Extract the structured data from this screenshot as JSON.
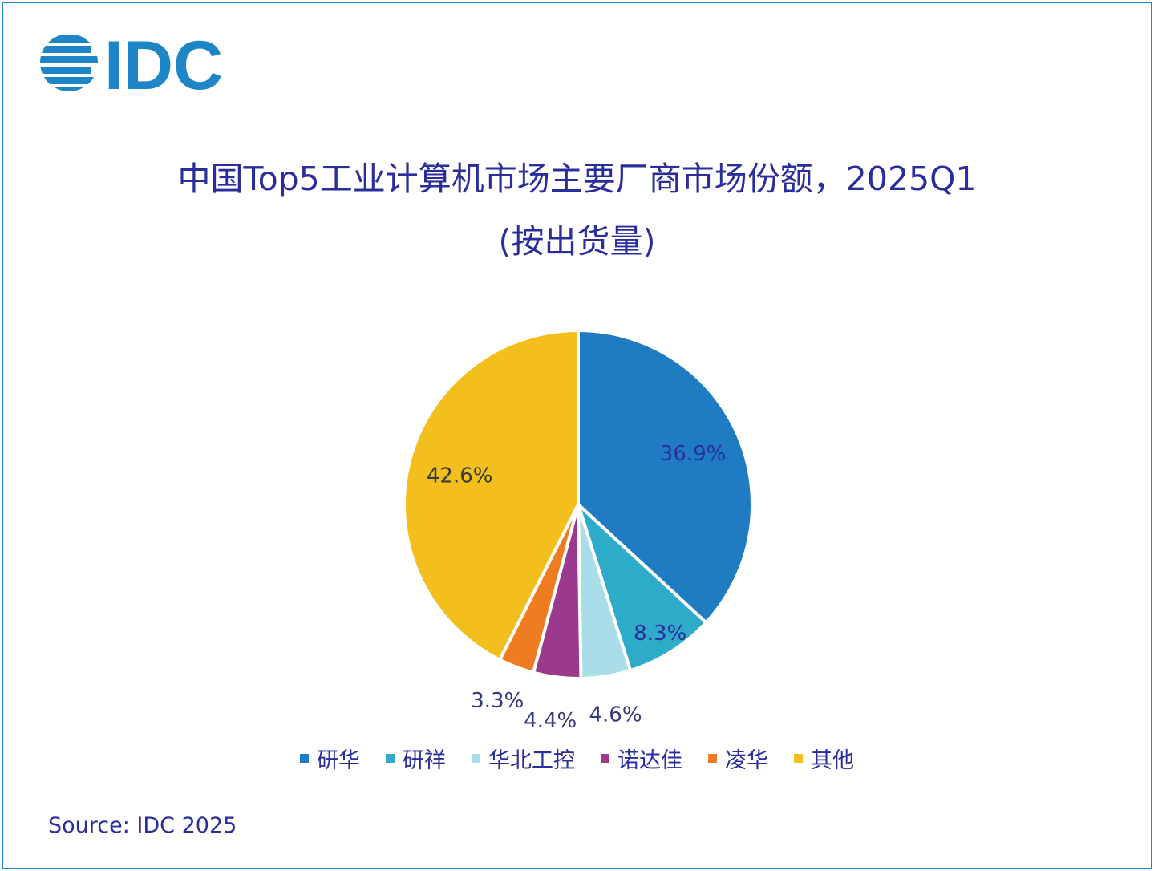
{
  "logo": {
    "text": "IDC",
    "color": "#1e86c7"
  },
  "title": {
    "line1": "中国Top5工业计算机市场主要厂商市场份额，2025Q1",
    "line2": "(按出货量)"
  },
  "source": "Source: IDC 2025",
  "chart_data": {
    "type": "pie",
    "start_angle_deg": 0,
    "direction": "clockwise",
    "slices": [
      {
        "name": "研华",
        "value": 36.9,
        "label": "36.9%",
        "color": "#1f7cc2",
        "label_color": "#2a2e9c"
      },
      {
        "name": "研祥",
        "value": 8.3,
        "label": "8.3%",
        "color": "#2eabc9",
        "label_color": "#2a2e9c"
      },
      {
        "name": "华北工控",
        "value": 4.6,
        "label": "4.6%",
        "color": "#a9dde7",
        "label_color": "#333a7a"
      },
      {
        "name": "诺达佳",
        "value": 4.4,
        "label": "4.4%",
        "color": "#9b3a8c",
        "label_color": "#333a7a"
      },
      {
        "name": "凌华",
        "value": 3.3,
        "label": "3.3%",
        "color": "#ee7d22",
        "label_color": "#333a7a"
      },
      {
        "name": "其他",
        "value": 42.6,
        "label": "42.6%",
        "color": "#f2bf1c",
        "label_color": "#3a3a3a"
      }
    ],
    "legend_position": "bottom"
  }
}
